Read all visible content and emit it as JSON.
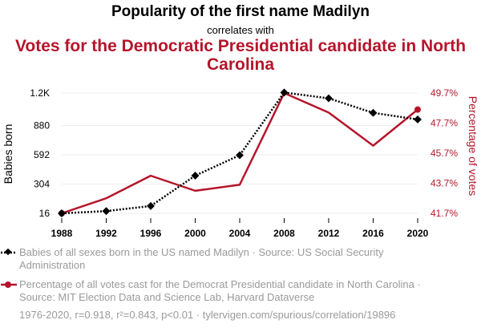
{
  "header": {
    "title": "Popularity of the first name Madilyn",
    "connector": "correlates with",
    "subtitle": "Votes for the Democratic Presidential candidate in North Carolina"
  },
  "colors": {
    "series1": "#000000",
    "series2": "#b5152b",
    "grid": "#eeeeee",
    "muted": "#9a9a9a"
  },
  "chart_data": {
    "type": "line",
    "x": [
      1988,
      1992,
      1996,
      2000,
      2004,
      2008,
      2012,
      2016,
      2020
    ],
    "x_tick_labels": [
      "1988",
      "1992",
      "1996",
      "2000",
      "2004",
      "2008",
      "2012",
      "2016",
      "2020"
    ],
    "series": [
      {
        "name": "Babies of all sexes born in the US named Madilyn",
        "axis": "left",
        "style": "dotted",
        "marker": "diamond",
        "values": [
          16,
          38,
          88,
          387,
          588,
          1205,
          1148,
          1005,
          940
        ]
      },
      {
        "name": "Percentage of all votes cast for the Democrat Presidential candidate in North Carolina",
        "axis": "right",
        "style": "solid",
        "marker": "circle",
        "values": [
          41.7,
          42.7,
          44.2,
          43.2,
          43.6,
          49.7,
          48.4,
          46.2,
          48.6
        ]
      }
    ],
    "y_left": {
      "label": "Babies born",
      "range": [
        16,
        1200
      ],
      "ticks": [
        16,
        304,
        592,
        880,
        1200
      ],
      "tick_labels": [
        "16",
        "304",
        "592",
        "880",
        "1.2K"
      ]
    },
    "y_right": {
      "label": "Percentage of votes",
      "range": [
        41.7,
        49.7
      ],
      "ticks": [
        41.7,
        43.7,
        45.7,
        47.7,
        49.7
      ],
      "tick_labels": [
        "41.7%",
        "43.7%",
        "45.7%",
        "47.7%",
        "49.7%"
      ]
    },
    "grid": true
  },
  "legend": [
    {
      "text": "Babies of all sexes born in the US named Madilyn · Source: US Social Security Administration"
    },
    {
      "text": "Percentage of all votes cast for the Democrat Presidential candidate in North Carolina · Source: MIT Election Data and Science Lab, Harvard Dataverse"
    }
  ],
  "footer": "1976-2020, r=0.918, r²=0.843, p<0.01 · tylervigen.com/spurious/correlation/19896"
}
